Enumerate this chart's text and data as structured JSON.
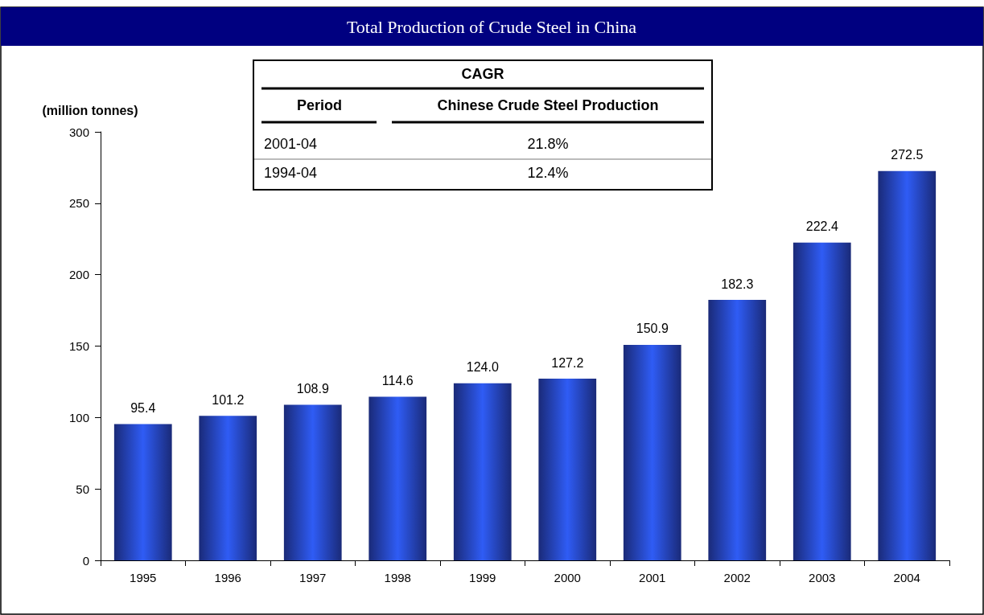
{
  "chart_data": {
    "type": "bar",
    "title": "Total Production of Crude Steel in China",
    "ylabel": "(million tonnes)",
    "categories": [
      "1995",
      "1996",
      "1997",
      "1998",
      "1999",
      "2000",
      "2001",
      "2002",
      "2003",
      "2004"
    ],
    "values": [
      95.4,
      101.2,
      108.9,
      114.6,
      124.0,
      127.2,
      150.9,
      182.3,
      222.4,
      272.5
    ],
    "value_labels": [
      "95.4",
      "101.2",
      "108.9",
      "114.6",
      "124.0",
      "127.2",
      "150.9",
      "182.3",
      "222.4",
      "272.5"
    ],
    "color": "#2f5cf5",
    "ylim": [
      0,
      300
    ],
    "yticks": [
      0,
      50,
      100,
      150,
      200,
      250,
      300
    ],
    "grid": false,
    "annotations": [
      "CAGR",
      "Period",
      "Chinese Crude Steel Production",
      "2001-04",
      "21.8%",
      "1994-04",
      "12.4%"
    ]
  }
}
